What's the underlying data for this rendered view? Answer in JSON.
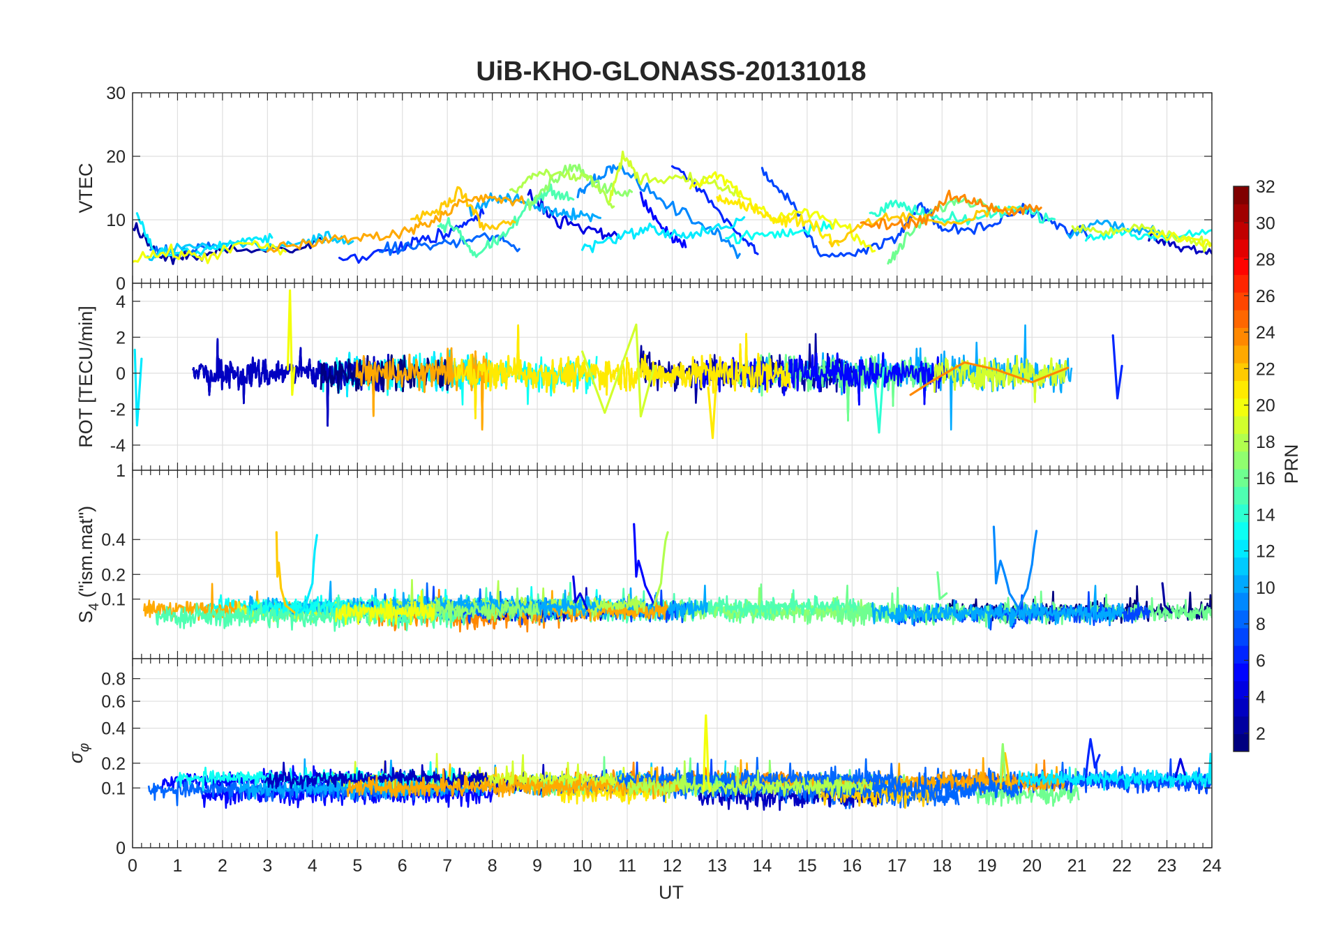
{
  "title": "UiB-KHO-GLONASS-20131018",
  "xlabel": "UT",
  "colorbar": {
    "label": "PRN",
    "ticks": [
      2,
      4,
      6,
      8,
      10,
      12,
      14,
      16,
      18,
      20,
      22,
      24,
      26,
      28,
      30,
      32
    ],
    "range": [
      1,
      32
    ],
    "colormap": "jet",
    "levels": 32
  },
  "chart_data": [
    {
      "type": "line",
      "panel": "vtec",
      "ylabel": "VTEC",
      "xlim": [
        0,
        24
      ],
      "ylim": [
        0,
        30
      ],
      "xticks": [
        0,
        1,
        2,
        3,
        4,
        5,
        6,
        7,
        8,
        9,
        10,
        11,
        12,
        13,
        14,
        15,
        16,
        17,
        18,
        19,
        20,
        21,
        22,
        23,
        24
      ],
      "yticks": [
        0,
        10,
        20,
        30
      ],
      "grid": true,
      "series": [
        {
          "prn": 2,
          "x": [
            0.0,
            0.6,
            1.2,
            2.0,
            3.5,
            4.3
          ],
          "y": [
            9.5,
            4.0,
            4.2,
            5.1,
            5.3,
            6.9
          ]
        },
        {
          "prn": 3,
          "x": [
            22.6,
            23.2,
            24.0
          ],
          "y": [
            7.4,
            5.9,
            4.7
          ]
        },
        {
          "prn": 4,
          "x": [
            8.8,
            9.4,
            10.2,
            10.8
          ],
          "y": [
            14.2,
            10.2,
            8.3,
            7.2
          ]
        },
        {
          "prn": 5,
          "x": [
            11.3,
            11.8,
            12.3
          ],
          "y": [
            13.2,
            8.4,
            5.7
          ]
        },
        {
          "prn": 6,
          "x": [
            4.6,
            5.8,
            6.4,
            7.2,
            7.8
          ],
          "y": [
            3.7,
            5.2,
            6.9,
            8.6,
            11.0
          ]
        },
        {
          "prn": 6,
          "x": [
            12.0,
            12.7,
            13.5,
            13.9
          ],
          "y": [
            18.6,
            14.0,
            7.9,
            4.6
          ]
        },
        {
          "prn": 7,
          "x": [
            14.0,
            14.6,
            15.3,
            16.2,
            17.0,
            17.5,
            18.0,
            19.0,
            19.8,
            20.5,
            21.3
          ],
          "y": [
            17.6,
            13.2,
            4.2,
            5.2,
            7.0,
            12.8,
            8.4,
            8.7,
            12.0,
            9.2,
            7.6
          ]
        },
        {
          "prn": 8,
          "x": [
            5.5,
            6.3,
            7.2,
            8.0,
            8.6
          ],
          "y": [
            5.2,
            5.8,
            6.4,
            7.5,
            5.4
          ]
        },
        {
          "prn": 8,
          "x": [
            0.4,
            1.0,
            1.8
          ],
          "y": [
            5.6,
            4.7,
            6.1
          ]
        },
        {
          "prn": 9,
          "x": [
            9.9,
            10.3,
            10.8,
            11.8,
            12.8,
            13.5
          ],
          "y": [
            14.3,
            16.7,
            18.5,
            12.6,
            8.9,
            4.6
          ]
        },
        {
          "prn": 10,
          "x": [
            7.5,
            8.0,
            8.6,
            9.3,
            9.8,
            10.4
          ],
          "y": [
            11.4,
            13.4,
            13.0,
            11.4,
            11.0,
            10.3
          ]
        },
        {
          "prn": 10,
          "x": [
            20.8,
            21.5,
            22.3,
            22.9
          ],
          "y": [
            7.6,
            9.8,
            8.3,
            7.8
          ]
        },
        {
          "prn": 11,
          "x": [
            0.3,
            0.9,
            2.2,
            3.4,
            4.2,
            4.9
          ],
          "y": [
            3.7,
            5.4,
            6.3,
            5.7,
            7.3,
            6.6
          ]
        },
        {
          "prn": 12,
          "x": [
            0.1,
            0.5,
            1.6,
            2.4,
            3.1
          ],
          "y": [
            11.1,
            4.2,
            5.2,
            6.7,
            7.2
          ]
        },
        {
          "prn": 12,
          "x": [
            10.0,
            10.8,
            11.5,
            12.2,
            12.8,
            13.6
          ],
          "y": [
            5.5,
            7.4,
            8.6,
            7.4,
            8.0,
            10.4
          ]
        },
        {
          "prn": 13,
          "x": [
            13.2,
            14.0,
            14.8,
            15.6
          ],
          "y": [
            7.1,
            7.6,
            8.0,
            9.5
          ]
        },
        {
          "prn": 13,
          "x": [
            21.2,
            22.0,
            23.0,
            24.0
          ],
          "y": [
            7.0,
            8.3,
            6.9,
            8.4
          ]
        },
        {
          "prn": 14,
          "x": [
            16.4,
            16.9,
            17.4,
            18.0,
            18.8,
            19.6,
            20.5
          ],
          "y": [
            10.8,
            12.5,
            11.3,
            9.8,
            10.2,
            12.0,
            10.1
          ]
        },
        {
          "prn": 15,
          "x": [
            6.8,
            7.2,
            7.6,
            8.2,
            8.8,
            9.3,
            9.8
          ],
          "y": [
            9.3,
            8.8,
            4.5,
            6.8,
            12.3,
            14.8,
            13.2
          ]
        },
        {
          "prn": 16,
          "x": [
            16.8,
            17.2,
            17.8,
            18.4,
            19.2
          ],
          "y": [
            2.9,
            7.0,
            11.4,
            13.2,
            12.1
          ]
        },
        {
          "prn": 17,
          "x": [
            8.8,
            9.3,
            9.8,
            10.4,
            11.1
          ],
          "y": [
            12.7,
            16.0,
            18.7,
            15.0,
            14.4
          ]
        },
        {
          "prn": 18,
          "x": [
            8.4,
            8.9,
            9.6,
            10.2,
            10.7
          ],
          "y": [
            14.2,
            17.3,
            17.4,
            16.2,
            12.1
          ]
        },
        {
          "prn": 19,
          "x": [
            10.6,
            10.9,
            11.3,
            12.2,
            12.9,
            13.5
          ],
          "y": [
            13.1,
            20.0,
            16.3,
            16.8,
            15.8,
            13.6
          ]
        },
        {
          "prn": 19,
          "x": [
            20.9,
            21.7,
            22.5,
            23.2,
            24.0
          ],
          "y": [
            8.8,
            7.9,
            9.0,
            6.9,
            6.0
          ]
        },
        {
          "prn": 20,
          "x": [
            12.4,
            13.0,
            13.6,
            14.2,
            15.0,
            15.8,
            16.5
          ],
          "y": [
            15.0,
            17.2,
            13.5,
            10.2,
            11.1,
            9.1,
            5.1
          ]
        },
        {
          "prn": 20,
          "x": [
            0.0,
            0.8,
            1.6,
            2.6,
            3.4
          ],
          "y": [
            4.0,
            4.8,
            4.1,
            6.3,
            5.0
          ]
        },
        {
          "prn": 20,
          "x": [
            22.6,
            23.3,
            24.0
          ],
          "y": [
            7.7,
            7.2,
            6.1
          ]
        },
        {
          "prn": 21,
          "x": [
            13.0,
            13.4,
            14.0,
            14.4,
            15.0,
            15.7
          ],
          "y": [
            13.5,
            12.4,
            11.3,
            9.8,
            10.0,
            6.0
          ]
        },
        {
          "prn": 22,
          "x": [
            6.2,
            6.8,
            7.3,
            7.8,
            8.5
          ],
          "y": [
            10.2,
            11.6,
            14.6,
            8.8,
            9.6
          ]
        },
        {
          "prn": 22,
          "x": [
            15.5,
            16.3,
            17.2,
            18.2,
            19.0,
            19.8
          ],
          "y": [
            6.0,
            9.5,
            10.7,
            9.2,
            11.3,
            11.6
          ]
        },
        {
          "prn": 23,
          "x": [
            3.0,
            4.0,
            5.0,
            6.0,
            6.7,
            7.3,
            8.0,
            8.7
          ],
          "y": [
            5.4,
            6.5,
            7.1,
            8.0,
            10.0,
            12.7,
            13.5,
            12.6
          ]
        },
        {
          "prn": 24,
          "x": [
            16.2,
            17.0,
            17.6,
            18.2,
            18.8,
            19.5,
            20.2
          ],
          "y": [
            9.4,
            9.2,
            10.0,
            13.6,
            12.8,
            11.2,
            11.9
          ]
        }
      ]
    },
    {
      "type": "line",
      "panel": "rot",
      "ylabel": "ROT [TECU/min]",
      "xlim": [
        0,
        24
      ],
      "ylim": [
        -5.4,
        5
      ],
      "yticks": [
        -4,
        -2,
        0,
        2,
        4
      ],
      "grid": true,
      "series": [
        {
          "prn": 20,
          "x": [
            3.45,
            3.5,
            3.55,
            3.6
          ],
          "y": [
            0.2,
            4.6,
            -1.2,
            0.3
          ]
        },
        {
          "prn": 19,
          "x": [
            10.0,
            10.5,
            11.2,
            11.3,
            11.6
          ],
          "y": [
            1.2,
            -2.2,
            2.7,
            -2.4,
            0.4
          ]
        },
        {
          "prn": 21,
          "x": [
            12.8,
            12.9,
            13.0
          ],
          "y": [
            -0.8,
            -3.6,
            0.5
          ]
        },
        {
          "prn": 14,
          "x": [
            16.5,
            16.6,
            16.7
          ],
          "y": [
            -0.6,
            -3.3,
            0.3
          ]
        },
        {
          "prn": 6,
          "x": [
            21.8,
            21.9,
            22.0
          ],
          "y": [
            2.1,
            -1.4,
            0.4
          ]
        },
        {
          "prn": 12,
          "x": [
            0.05,
            0.1,
            0.2
          ],
          "y": [
            1.3,
            -2.9,
            0.8
          ]
        },
        {
          "prn": 24,
          "x": [
            17.3,
            17.8,
            18.5,
            19.2,
            20.0,
            20.8
          ],
          "y": [
            -1.2,
            -0.4,
            0.6,
            0.2,
            -0.5,
            0.3
          ]
        }
      ]
    },
    {
      "type": "line",
      "panel": "s4",
      "ylabel": "S4 (\"ism.mat\")",
      "ylabel_main": "S",
      "ylabel_sub": "4",
      "ylabel_rest": " (\"ism.mat\")",
      "xlim": [
        0,
        24
      ],
      "ylim": [
        0,
        1
      ],
      "yscale": "sqrt",
      "yticks": [
        0.1,
        0.2,
        0.4
      ],
      "top_tick_label": "1",
      "grid": true,
      "series": [
        {
          "prn": 22,
          "x": [
            3.2,
            3.22,
            3.25,
            3.3,
            3.4,
            3.6
          ],
          "y": [
            0.45,
            0.19,
            0.26,
            0.14,
            0.08,
            0.06
          ]
        },
        {
          "prn": 12,
          "x": [
            3.7,
            3.85,
            4.0,
            4.05,
            4.1
          ],
          "y": [
            0.06,
            0.08,
            0.16,
            0.33,
            0.43
          ]
        },
        {
          "prn": 5,
          "x": [
            11.15,
            11.2,
            11.25,
            11.4,
            11.6
          ],
          "y": [
            0.51,
            0.19,
            0.27,
            0.15,
            0.08
          ]
        },
        {
          "prn": 18,
          "x": [
            11.6,
            11.75,
            11.85,
            11.9
          ],
          "y": [
            0.08,
            0.16,
            0.39,
            0.45
          ]
        },
        {
          "prn": 4,
          "x": [
            9.8,
            9.85,
            9.95,
            10.1
          ],
          "y": [
            0.19,
            0.09,
            0.12,
            0.07
          ]
        },
        {
          "prn": 9,
          "x": [
            19.15,
            19.2,
            19.3,
            19.5,
            19.7
          ],
          "y": [
            0.49,
            0.16,
            0.27,
            0.12,
            0.07
          ]
        },
        {
          "prn": 9,
          "x": [
            19.7,
            19.9,
            20.0,
            20.05,
            20.1
          ],
          "y": [
            0.07,
            0.14,
            0.25,
            0.36,
            0.46
          ]
        },
        {
          "prn": 16,
          "x": [
            17.9,
            17.95,
            18.1
          ],
          "y": [
            0.21,
            0.1,
            0.12
          ]
        },
        {
          "prn": 2,
          "x": [
            22.9,
            22.95,
            23.1
          ],
          "y": [
            0.16,
            0.08,
            0.06
          ]
        }
      ]
    },
    {
      "type": "line",
      "panel": "sigma",
      "ylabel": "σφ",
      "ylabel_main": "σ",
      "ylabel_sub": "φ",
      "xlim": [
        0,
        24
      ],
      "ylim": [
        0,
        1
      ],
      "yscale": "sqrt",
      "yticks": [
        0,
        0.1,
        0.2,
        0.4,
        0.6,
        0.8
      ],
      "grid": true,
      "series": [
        {
          "prn": 20,
          "x": [
            12.7,
            12.75,
            12.8,
            12.85
          ],
          "y": [
            0.09,
            0.49,
            0.12,
            0.09
          ]
        },
        {
          "prn": 6,
          "x": [
            21.2,
            21.3,
            21.4,
            21.5
          ],
          "y": [
            0.14,
            0.33,
            0.18,
            0.24
          ]
        },
        {
          "prn": 22,
          "x": [
            19.3,
            19.4,
            19.5
          ],
          "y": [
            0.1,
            0.25,
            0.11
          ]
        },
        {
          "prn": 17,
          "x": [
            19.3,
            19.35,
            19.4
          ],
          "y": [
            0.12,
            0.3,
            0.13
          ]
        },
        {
          "prn": 4,
          "x": [
            23.2,
            23.3,
            23.4
          ],
          "y": [
            0.14,
            0.22,
            0.15
          ]
        }
      ]
    }
  ]
}
